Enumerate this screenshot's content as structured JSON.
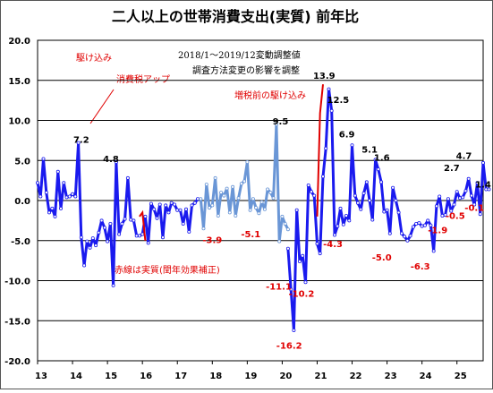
{
  "chart_data": {
    "type": "line",
    "title": "二人以上の世帯消費支出(実質) 前年比",
    "note_line1": "2018/1～2019/12変動調整値",
    "note_line2": "調査方法変更の影響を調整",
    "annotations": {
      "kakekomi": "駆け込み",
      "shohizei": "消費税アップ",
      "zouzei": "増税前の駆け込み",
      "akasen": "赤線は実質(閏年効果補正)"
    },
    "ylim": [
      -20,
      20
    ],
    "yticks": [
      "20.0",
      "15.0",
      "10.0",
      "5.0",
      "0.0",
      "-5.0",
      "-10.0",
      "-15.0",
      "-20.0"
    ],
    "xlim": [
      2013,
      2025.75
    ],
    "xticks": [
      "13",
      "14",
      "15",
      "16",
      "17",
      "18",
      "19",
      "20",
      "21",
      "22",
      "23",
      "24",
      "25"
    ],
    "colors": {
      "main": "#1a1aee",
      "adjusted": "#6a96d6",
      "red": "#e00000",
      "grid": "#000000"
    },
    "series": [
      {
        "x_start": 2013,
        "step_months": 1,
        "values": [
          2.2,
          0.5,
          5.2,
          1.0,
          -1.5,
          -1.0,
          -2.0,
          3.6,
          -1.0,
          2.2,
          0.4,
          0.5,
          0.8,
          0.5,
          7.2,
          -4.6,
          -8.1,
          -5.1,
          -5.9,
          -4.7,
          -5.6,
          -4.0,
          -2.5,
          -3.4,
          -5.1,
          -2.9,
          -10.6,
          4.8,
          -4.2,
          -2.9,
          -2.3,
          2.8,
          -2.4,
          -2.5,
          -4.4,
          -4.4,
          -4.2,
          -2.0,
          -5.3,
          -0.4,
          -1.1,
          -2.2,
          -0.5,
          -4.6,
          -0.6,
          -1.5,
          -0.3,
          -0.5,
          -1.2,
          -1.2,
          -2.9,
          -1.1,
          -3.9,
          -0.6,
          -0.3,
          0.2
        ]
      },
      {
        "x_start": 2017.6667,
        "step_months": 1,
        "values": [
          0.2,
          -3.5,
          2.0,
          -0.9,
          -0.6,
          2.8,
          -1.9,
          1.0,
          0.6,
          1.5,
          -1.5,
          1.7,
          -1.9,
          0.3,
          2.1,
          2.4,
          4.8,
          -1.2,
          0.2,
          -0.9,
          -1.6,
          -0.2,
          -1.1,
          1.4,
          1.0,
          0.3,
          9.5,
          -5.1,
          -2.0,
          -2.9,
          -3.6
        ]
      },
      {
        "x_start": 2020.1667,
        "step_months": 1,
        "values": [
          -6.0,
          -11.1,
          -16.2,
          -1.2,
          -7.6,
          -6.9,
          -10.2,
          1.9,
          1.1,
          0.6,
          -5.4,
          -6.6,
          3.0,
          6.5,
          13.9,
          11.2,
          -4.3,
          -3.2,
          -1.0,
          -3.0,
          -1.9,
          -2.5,
          6.9,
          0.6,
          -0.3,
          -1.1,
          0.9,
          2.3,
          0.0,
          -2.4,
          5.1,
          3.9,
          2.3,
          -1.4,
          -1.2,
          -4.1,
          1.6,
          0.0,
          -1.5,
          -4.1,
          -4.5,
          -5.0,
          -4.4,
          -3.3,
          -2.9,
          -2.8,
          -3.2,
          -3.1,
          -2.5,
          -3.1,
          -6.3,
          -0.7,
          0.5,
          -1.9,
          -1.8,
          0.2,
          -1.3,
          -0.5,
          1.1,
          0.3,
          0.4,
          1.2,
          2.7,
          0.6,
          -0.5,
          2.2,
          -1.7,
          4.7,
          1.4,
          1.4
        ]
      }
    ],
    "red_series": [
      {
        "x": [
          2015.917,
          2016.0,
          2016.083
        ],
        "values": [
          -2.0,
          -1.5,
          -5.0
        ]
      },
      {
        "x": [
          2021.0,
          2021.083,
          2021.167
        ],
        "values": [
          -2.0,
          10.9,
          14.5
        ]
      }
    ],
    "data_labels": [
      {
        "text": "7.2",
        "x": 2014.25,
        "y": 7.2,
        "color": "black"
      },
      {
        "text": "4.8",
        "x": 2015.1,
        "y": 4.8,
        "color": "black"
      },
      {
        "text": "-3.9",
        "x": 2018.0,
        "y": -5.3,
        "color": "red"
      },
      {
        "text": "-5.1",
        "x": 2019.1,
        "y": -4.6,
        "color": "red"
      },
      {
        "text": "9.5",
        "x": 2019.95,
        "y": 9.5,
        "color": "black"
      },
      {
        "text": "-11.1",
        "x": 2019.9,
        "y": -11.1,
        "color": "red"
      },
      {
        "text": "-10.2",
        "x": 2020.55,
        "y": -12.0,
        "color": "red"
      },
      {
        "text": "-16.2",
        "x": 2020.2,
        "y": -18.5,
        "color": "red"
      },
      {
        "text": "13.9",
        "x": 2021.2,
        "y": 15.2,
        "color": "black"
      },
      {
        "text": "12.5",
        "x": 2021.6,
        "y": 12.2,
        "color": "black"
      },
      {
        "text": "-4.3",
        "x": 2021.45,
        "y": -5.8,
        "color": "red"
      },
      {
        "text": "6.9",
        "x": 2021.85,
        "y": 7.9,
        "color": "black"
      },
      {
        "text": "5.1",
        "x": 2022.5,
        "y": 6.0,
        "color": "black"
      },
      {
        "text": "1.6",
        "x": 2022.85,
        "y": 5.0,
        "color": "black"
      },
      {
        "text": "-5.0",
        "x": 2022.85,
        "y": -7.5,
        "color": "red"
      },
      {
        "text": "-6.3",
        "x": 2023.95,
        "y": -8.6,
        "color": "red"
      },
      {
        "text": "-1.9",
        "x": 2024.45,
        "y": -4.1,
        "color": "red"
      },
      {
        "text": "2.7",
        "x": 2024.85,
        "y": 3.7,
        "color": "black"
      },
      {
        "text": "-0.5",
        "x": 2024.95,
        "y": -2.3,
        "color": "red"
      },
      {
        "text": "4.7",
        "x": 2025.2,
        "y": 5.2,
        "color": "black"
      },
      {
        "text": "-0.1",
        "x": 2025.5,
        "y": -1.3,
        "color": "red"
      },
      {
        "text": "1.4",
        "x": 2025.75,
        "y": 1.6,
        "color": "black"
      }
    ],
    "grid": true
  }
}
